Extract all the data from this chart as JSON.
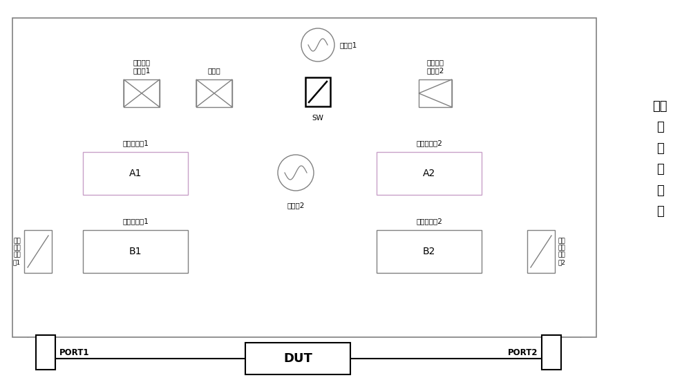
{
  "bg_color": "#ffffff",
  "line_color": "#808080",
  "line_color_pink": "#c8a0c8",
  "green_line": "#00aa00",
  "title_right": "矢量\n网\n络\n分\n析\n仪",
  "labels": {
    "ref_splitter1": "参考信道\n功分剸1",
    "coupler": "耦合器",
    "source1": "信号源1",
    "sw": "SW",
    "ref_splitter2": "参考信道\n功分剸2",
    "ref_recv1": "参考接收权1",
    "source2": "信号源2",
    "ref_recv2": "参考接收权2",
    "A1": "A1",
    "A2": "A2",
    "test_recv1": "测试接收权1",
    "B1": "B1",
    "test_recv2": "测试接收权2",
    "B2": "B2",
    "test_coupler1": "测试\n通道\n耦合\n器1",
    "test_coupler2": "测试\n通道\n耦合\n器2",
    "port1": "PORT1",
    "port2": "PORT2",
    "dut": "DUT"
  }
}
